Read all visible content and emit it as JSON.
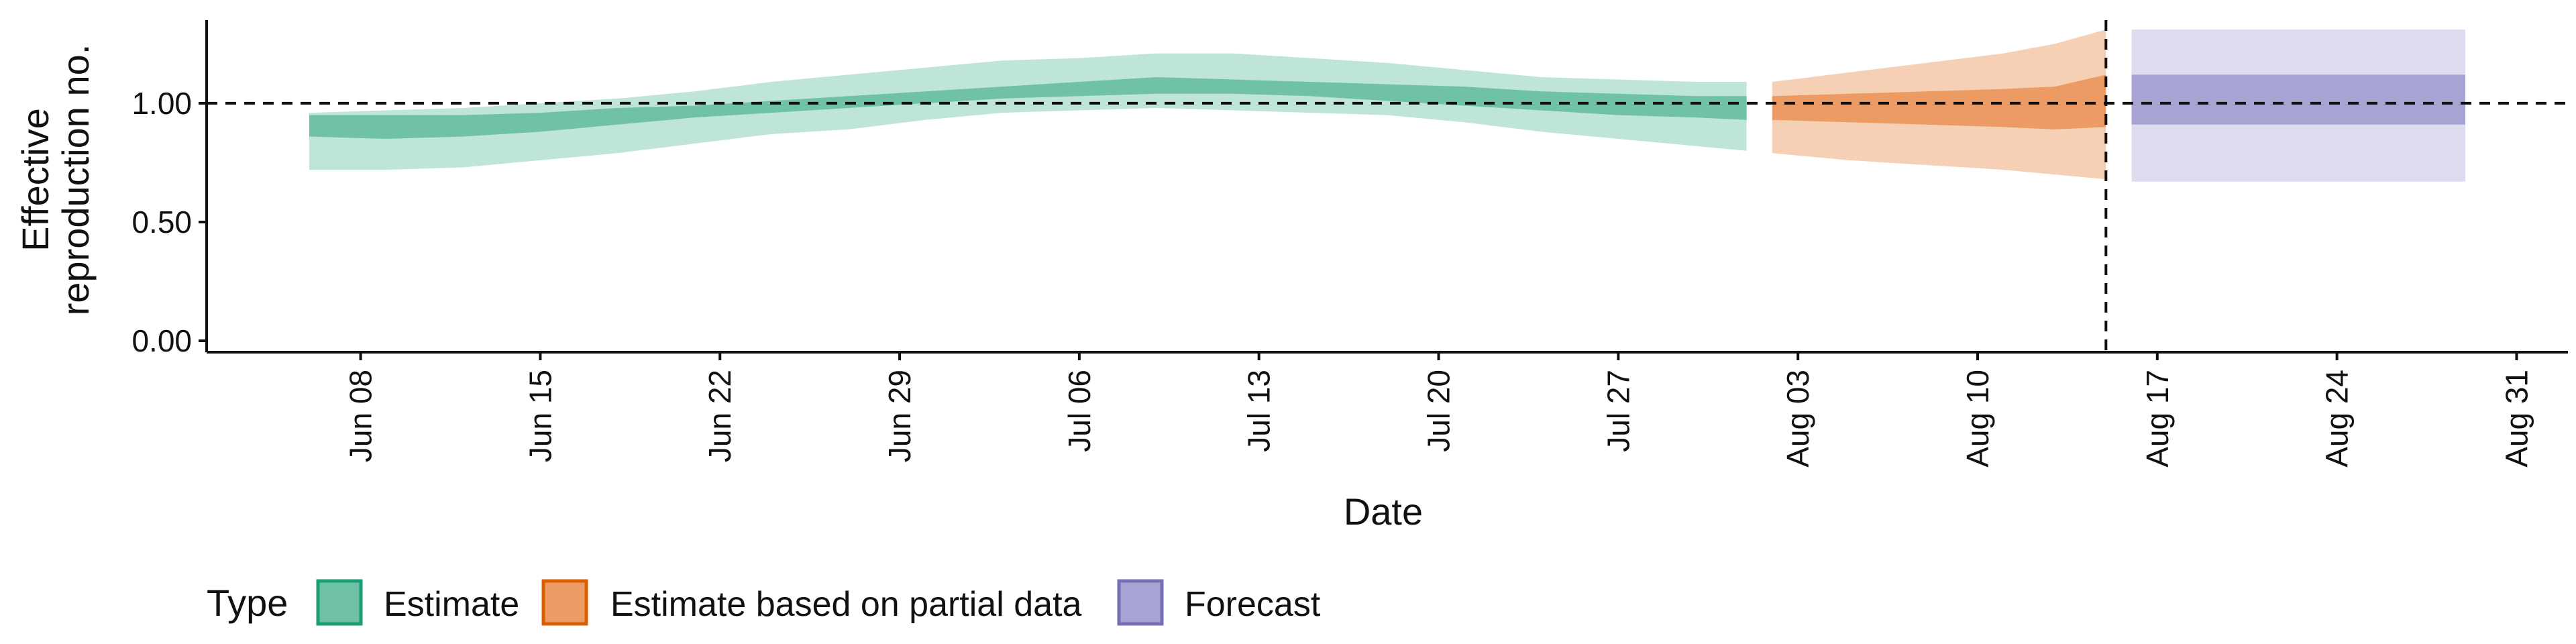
{
  "chart_data": {
    "type": "area",
    "xlabel": "Date",
    "ylabel_lines": [
      "Effective",
      "reproduction no."
    ],
    "ylim": [
      0,
      1.35
    ],
    "yticks": [
      0,
      0.5,
      1.0
    ],
    "ytick_labels": [
      "0.00",
      "0.50",
      "1.00"
    ],
    "xlim": [
      "2021-06-02",
      "2021-09-02"
    ],
    "xticks": [
      "2021-06-08",
      "2021-06-15",
      "2021-06-22",
      "2021-06-29",
      "2021-07-06",
      "2021-07-13",
      "2021-07-20",
      "2021-07-27",
      "2021-08-03",
      "2021-08-10",
      "2021-08-17",
      "2021-08-24",
      "2021-08-31"
    ],
    "xtick_labels": [
      "Jun 08",
      "Jun 15",
      "Jun 22",
      "Jun 29",
      "Jul 06",
      "Jul 13",
      "Jul 20",
      "Jul 27",
      "Aug 03",
      "Aug 10",
      "Aug 17",
      "Aug 24",
      "Aug 31"
    ],
    "reference_line_y": 1.0,
    "vertical_line_x": "2021-08-15",
    "legend": {
      "title": "Type",
      "position": "bottom",
      "entries": [
        {
          "label": "Estimate",
          "fill": "#6fc2a5",
          "border": "#1b9e77"
        },
        {
          "label": "Estimate based on partial data",
          "fill": "#eb9b63",
          "border": "#d95f02"
        },
        {
          "label": "Forecast",
          "fill": "#a7a3d3",
          "border": "#7570b3"
        }
      ]
    },
    "series": [
      {
        "name": "Estimate",
        "color_outer": "#bfe5d8",
        "color_inner": "#6fc2a5",
        "x": [
          "2021-06-06",
          "2021-06-09",
          "2021-06-12",
          "2021-06-15",
          "2021-06-18",
          "2021-06-21",
          "2021-06-24",
          "2021-06-27",
          "2021-06-30",
          "2021-07-03",
          "2021-07-06",
          "2021-07-09",
          "2021-07-12",
          "2021-07-15",
          "2021-07-18",
          "2021-07-21",
          "2021-07-24",
          "2021-07-27",
          "2021-07-30",
          "2021-08-01"
        ],
        "outer_lower": [
          0.72,
          0.72,
          0.73,
          0.76,
          0.79,
          0.83,
          0.87,
          0.89,
          0.93,
          0.96,
          0.97,
          0.98,
          0.97,
          0.96,
          0.95,
          0.92,
          0.88,
          0.85,
          0.82,
          0.8
        ],
        "outer_upper": [
          0.96,
          0.97,
          0.98,
          1.0,
          1.02,
          1.05,
          1.09,
          1.12,
          1.15,
          1.18,
          1.19,
          1.21,
          1.21,
          1.19,
          1.17,
          1.14,
          1.11,
          1.1,
          1.09,
          1.09
        ],
        "inner_lower": [
          0.86,
          0.85,
          0.86,
          0.88,
          0.91,
          0.94,
          0.96,
          0.98,
          1.0,
          1.02,
          1.03,
          1.04,
          1.04,
          1.03,
          1.01,
          0.99,
          0.97,
          0.95,
          0.94,
          0.93
        ],
        "inner_upper": [
          0.95,
          0.95,
          0.95,
          0.96,
          0.98,
          0.99,
          1.01,
          1.03,
          1.05,
          1.07,
          1.09,
          1.11,
          1.1,
          1.09,
          1.08,
          1.07,
          1.05,
          1.04,
          1.03,
          1.03
        ]
      },
      {
        "name": "Estimate based on partial data",
        "color_outer": "#f5d0b4",
        "color_inner": "#eb9b63",
        "x": [
          "2021-08-02",
          "2021-08-05",
          "2021-08-08",
          "2021-08-11",
          "2021-08-13",
          "2021-08-15"
        ],
        "outer_lower": [
          0.79,
          0.76,
          0.74,
          0.72,
          0.7,
          0.68
        ],
        "outer_upper": [
          1.09,
          1.13,
          1.17,
          1.21,
          1.25,
          1.31
        ],
        "inner_lower": [
          0.93,
          0.92,
          0.91,
          0.9,
          0.89,
          0.9
        ],
        "inner_upper": [
          1.03,
          1.04,
          1.05,
          1.06,
          1.07,
          1.12
        ]
      },
      {
        "name": "Forecast",
        "color_outer": "#dddcee",
        "color_inner": "#a7a3d3",
        "x": [
          "2021-08-16",
          "2021-08-29"
        ],
        "outer_lower": [
          0.67,
          0.67
        ],
        "outer_upper": [
          1.31,
          1.31
        ],
        "inner_lower": [
          0.91,
          0.91
        ],
        "inner_upper": [
          1.12,
          1.12
        ]
      }
    ]
  }
}
